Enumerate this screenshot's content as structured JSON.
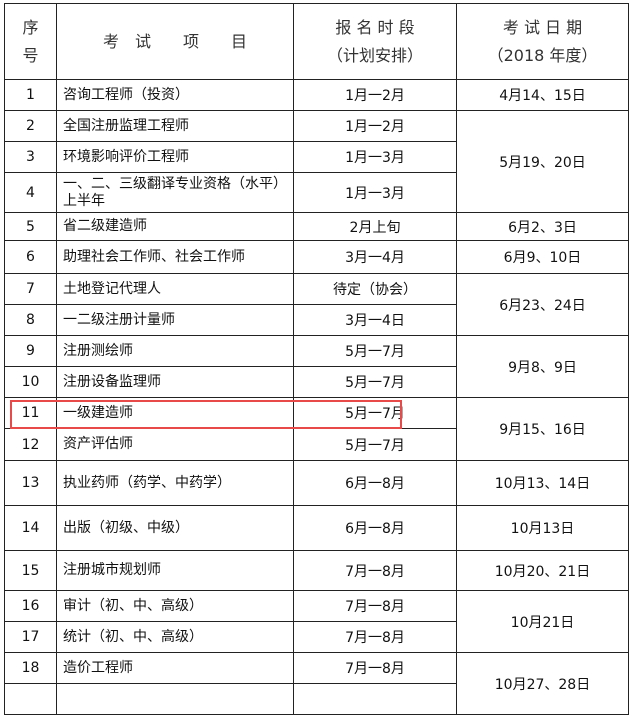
{
  "header": {
    "seq": [
      "序",
      "号"
    ],
    "item": "考　试　　项　　目",
    "signup": [
      "报 名 时 段",
      "（计划安排）"
    ],
    "exam_date": [
      "考 试 日 期",
      "（2018 年度）"
    ]
  },
  "rows": [
    {
      "no": "1",
      "item": "咨询工程师（投资）",
      "signup": "1月一2月"
    },
    {
      "no": "2",
      "item": "全国注册监理工程师",
      "signup": "1月一2月"
    },
    {
      "no": "3",
      "item": "环境影响评价工程师",
      "signup": "1月一3月"
    },
    {
      "no": "4",
      "item": "一、二、三级翻译专业资格（水平）上半年",
      "signup": "1月一3月"
    },
    {
      "no": "5",
      "item": "省二级建造师",
      "signup": "2月上旬"
    },
    {
      "no": "6",
      "item": "助理社会工作师、社会工作师",
      "signup": "3月一4月"
    },
    {
      "no": "7",
      "item": "土地登记代理人",
      "signup": "待定（协会）"
    },
    {
      "no": "8",
      "item": "一二级注册计量师",
      "signup": "3月一4日"
    },
    {
      "no": "9",
      "item": "注册测绘师",
      "signup": "5月一7月"
    },
    {
      "no": "10",
      "item": "注册设备监理师",
      "signup": "5月一7月"
    },
    {
      "no": "11",
      "item": "一级建造师",
      "signup": "5月一7月"
    },
    {
      "no": "12",
      "item": "资产评估师",
      "signup": "5月一7月"
    },
    {
      "no": "13",
      "item": "执业药师（药学、中药学）",
      "signup": "6月一8月"
    },
    {
      "no": "14",
      "item": "出版（初级、中级）",
      "signup": "6月一8月"
    },
    {
      "no": "15",
      "item": "注册城市规划师",
      "signup": "7月一8月"
    },
    {
      "no": "16",
      "item": "审计（初、中、高级）",
      "signup": "7月一8月"
    },
    {
      "no": "17",
      "item": "统计（初、中、高级）",
      "signup": "7月一8月"
    },
    {
      "no": "18",
      "item": "造价工程师",
      "signup": "7月一8月"
    }
  ],
  "dates": [
    "4月14、15日",
    "5月19、20日",
    "6月2、3日",
    "6月9、10日",
    "6月23、24日",
    "9月8、9日",
    "9月15、16日",
    "10月13、14日",
    "10月13日",
    "10月20、21日",
    "10月21日",
    "10月27、28日"
  ],
  "highlight_color": "#e84a4a"
}
